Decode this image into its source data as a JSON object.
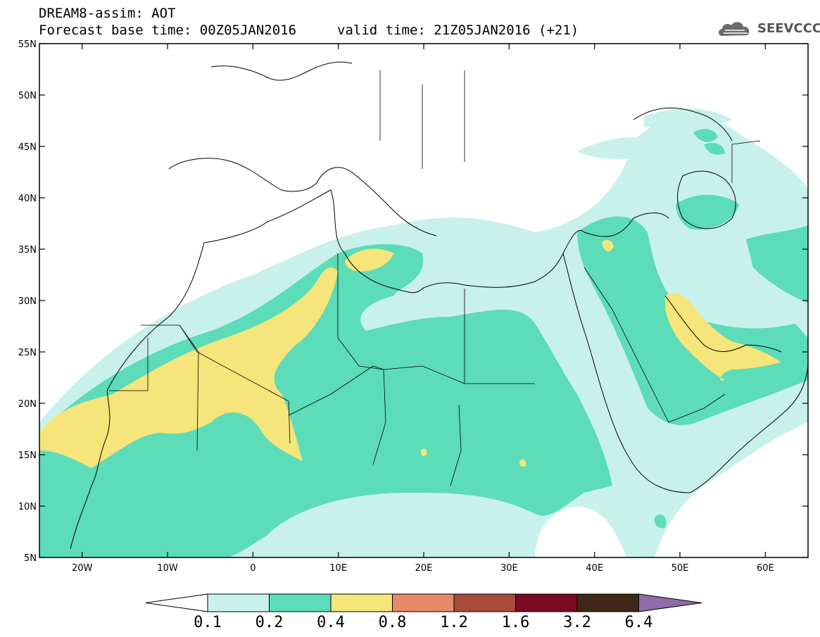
{
  "header": {
    "title": "DREAM8-assim: AOT",
    "base_time_label": "Forecast base time: 00Z05JAN2016",
    "valid_time_label": "valid time: 21Z05JAN2016 (+21)",
    "logo_text": "SEEVCCC"
  },
  "map": {
    "lon_range": [
      -25,
      65
    ],
    "lat_range": [
      5,
      55
    ],
    "lat_ticks": [
      "5N",
      "10N",
      "15N",
      "20N",
      "25N",
      "30N",
      "35N",
      "40N",
      "45N",
      "50N",
      "55N"
    ],
    "lon_ticks": [
      "20W",
      "10W",
      "0",
      "10E",
      "20E",
      "30E",
      "40E",
      "50E",
      "60E"
    ],
    "variable": "AOT",
    "colors": {
      "c1": "#c9f1ec",
      "c2": "#5cdcb8",
      "c3": "#f5e57a",
      "c4": "#e8896a",
      "c5": "#a84a3c",
      "c6": "#7b0a24",
      "c7": "#3e2716",
      "c8": "#8f6da8"
    }
  },
  "colorbar": {
    "labels": [
      "0.1",
      "0.2",
      "0.4",
      "0.8",
      "1.2",
      "1.6",
      "3.2",
      "6.4"
    ],
    "colors": [
      "#c9f1ec",
      "#5cdcb8",
      "#f5e57a",
      "#e8896a",
      "#a84a3c",
      "#7b0a24",
      "#3e2716"
    ]
  }
}
